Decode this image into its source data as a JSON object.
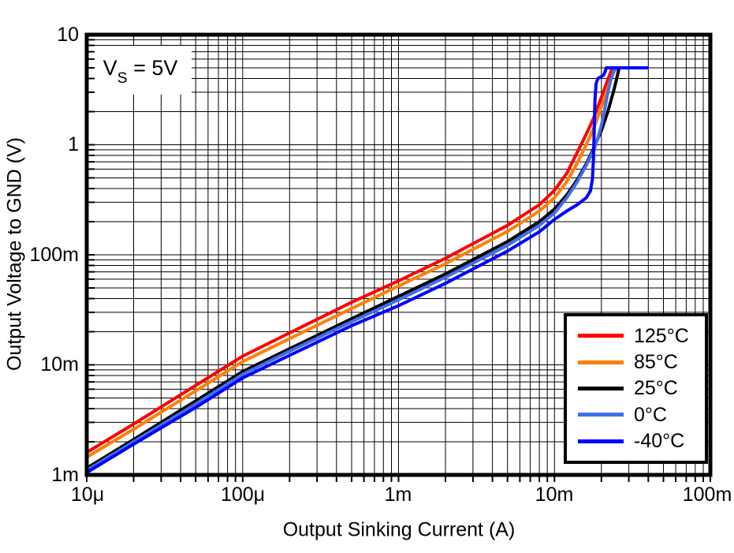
{
  "chart_data": {
    "type": "line",
    "title": "",
    "xlabel": "Output Sinking Current (A)",
    "ylabel": "Output Voltage to GND (V)",
    "x_scale": "log",
    "y_scale": "log",
    "xlim": [
      1e-05,
      0.1
    ],
    "ylim": [
      0.001,
      10
    ],
    "x_tick_labels": [
      "10μ",
      "100μ",
      "1m",
      "10m",
      "100m"
    ],
    "y_tick_labels": [
      "10",
      "1",
      "100m",
      "10m",
      "1m"
    ],
    "grid": "full log grid, major and minor, black",
    "legend_position": "lower right",
    "annotation": {
      "text": "VS = 5V",
      "var": "V",
      "sub": "S",
      "rest": " = 5V"
    },
    "frame_color": "#000000",
    "background_color": "#ffffff",
    "series": [
      {
        "label": "125°C",
        "color": "#ff0000",
        "points": [
          [
            1e-05,
            0.0016
          ],
          [
            2e-05,
            0.0029
          ],
          [
            5e-05,
            0.0065
          ],
          [
            0.0001,
            0.012
          ],
          [
            0.0002,
            0.0195
          ],
          [
            0.0005,
            0.037
          ],
          [
            0.001,
            0.058
          ],
          [
            0.002,
            0.093
          ],
          [
            0.005,
            0.185
          ],
          [
            0.008,
            0.285
          ],
          [
            0.01,
            0.385
          ],
          [
            0.012,
            0.55
          ],
          [
            0.014,
            0.85
          ],
          [
            0.016,
            1.25
          ],
          [
            0.018,
            1.8
          ],
          [
            0.02,
            2.7
          ],
          [
            0.022,
            3.9
          ],
          [
            0.0235,
            5
          ],
          [
            0.04,
            5
          ]
        ]
      },
      {
        "label": "85°C",
        "color": "#ff8000",
        "points": [
          [
            1e-05,
            0.00145
          ],
          [
            2e-05,
            0.0026
          ],
          [
            5e-05,
            0.0058
          ],
          [
            0.0001,
            0.0107
          ],
          [
            0.0002,
            0.0173
          ],
          [
            0.0005,
            0.0325
          ],
          [
            0.001,
            0.052
          ],
          [
            0.002,
            0.083
          ],
          [
            0.005,
            0.163
          ],
          [
            0.008,
            0.25
          ],
          [
            0.01,
            0.33
          ],
          [
            0.012,
            0.46
          ],
          [
            0.014,
            0.68
          ],
          [
            0.016,
            1.0
          ],
          [
            0.018,
            1.45
          ],
          [
            0.02,
            2.2
          ],
          [
            0.022,
            3.3
          ],
          [
            0.0245,
            5
          ],
          [
            0.04,
            5
          ]
        ]
      },
      {
        "label": "25°C",
        "color": "#000000",
        "points": [
          [
            1e-05,
            0.00115
          ],
          [
            2e-05,
            0.0021
          ],
          [
            5e-05,
            0.0047
          ],
          [
            0.0001,
            0.0087
          ],
          [
            0.0002,
            0.014
          ],
          [
            0.0005,
            0.0262
          ],
          [
            0.001,
            0.042
          ],
          [
            0.002,
            0.067
          ],
          [
            0.005,
            0.132
          ],
          [
            0.008,
            0.2
          ],
          [
            0.01,
            0.26
          ],
          [
            0.012,
            0.35
          ],
          [
            0.014,
            0.48
          ],
          [
            0.016,
            0.67
          ],
          [
            0.018,
            0.95
          ],
          [
            0.02,
            1.35
          ],
          [
            0.022,
            2.0
          ],
          [
            0.024,
            3.1
          ],
          [
            0.025,
            3.9
          ],
          [
            0.026,
            5
          ],
          [
            0.04,
            5
          ]
        ]
      },
      {
        "label": "0°C",
        "color": "#3f6fef",
        "points": [
          [
            1e-05,
            0.0011
          ],
          [
            2e-05,
            0.002
          ],
          [
            5e-05,
            0.0044
          ],
          [
            0.0001,
            0.0082
          ],
          [
            0.0002,
            0.0133
          ],
          [
            0.0005,
            0.0247
          ],
          [
            0.001,
            0.039
          ],
          [
            0.002,
            0.0625
          ],
          [
            0.005,
            0.122
          ],
          [
            0.008,
            0.185
          ],
          [
            0.01,
            0.24
          ],
          [
            0.012,
            0.33
          ],
          [
            0.014,
            0.46
          ],
          [
            0.016,
            0.65
          ],
          [
            0.018,
            0.92
          ],
          [
            0.019,
            1.15
          ],
          [
            0.02,
            1.5
          ],
          [
            0.021,
            2.1
          ],
          [
            0.022,
            3.0
          ],
          [
            0.023,
            3.9
          ],
          [
            0.024,
            4.6
          ],
          [
            0.025,
            5
          ],
          [
            0.04,
            5
          ]
        ]
      },
      {
        "label": "-40°C",
        "color": "#0000ff",
        "points": [
          [
            1e-05,
            0.00105
          ],
          [
            2e-05,
            0.0019
          ],
          [
            5e-05,
            0.0041
          ],
          [
            0.0001,
            0.0076
          ],
          [
            0.0002,
            0.0122
          ],
          [
            0.0005,
            0.0227
          ],
          [
            0.001,
            0.0345
          ],
          [
            0.002,
            0.055
          ],
          [
            0.005,
            0.108
          ],
          [
            0.008,
            0.162
          ],
          [
            0.01,
            0.21
          ],
          [
            0.012,
            0.25
          ],
          [
            0.014,
            0.285
          ],
          [
            0.016,
            0.33
          ],
          [
            0.017,
            0.38
          ],
          [
            0.0175,
            0.48
          ],
          [
            0.0178,
            0.75
          ],
          [
            0.018,
            1.4
          ],
          [
            0.0182,
            2.6
          ],
          [
            0.0185,
            3.6
          ],
          [
            0.019,
            4.0
          ],
          [
            0.0205,
            4.25
          ],
          [
            0.021,
            4.5
          ],
          [
            0.0215,
            5
          ],
          [
            0.04,
            5
          ]
        ]
      }
    ]
  }
}
